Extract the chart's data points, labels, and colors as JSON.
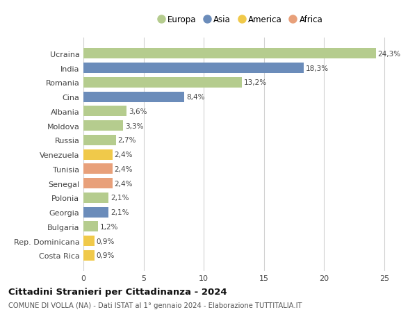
{
  "countries": [
    "Ucraina",
    "India",
    "Romania",
    "Cina",
    "Albania",
    "Moldova",
    "Russia",
    "Venezuela",
    "Tunisia",
    "Senegal",
    "Polonia",
    "Georgia",
    "Bulgaria",
    "Rep. Dominicana",
    "Costa Rica"
  ],
  "values": [
    24.3,
    18.3,
    13.2,
    8.4,
    3.6,
    3.3,
    2.7,
    2.4,
    2.4,
    2.4,
    2.1,
    2.1,
    1.2,
    0.9,
    0.9
  ],
  "labels": [
    "24,3%",
    "18,3%",
    "13,2%",
    "8,4%",
    "3,6%",
    "3,3%",
    "2,7%",
    "2,4%",
    "2,4%",
    "2,4%",
    "2,1%",
    "2,1%",
    "1,2%",
    "0,9%",
    "0,9%"
  ],
  "continents": [
    "Europa",
    "Asia",
    "Europa",
    "Asia",
    "Europa",
    "Europa",
    "Europa",
    "America",
    "Africa",
    "Africa",
    "Europa",
    "Asia",
    "Europa",
    "America",
    "America"
  ],
  "colors": {
    "Europa": "#b5cc8e",
    "Asia": "#6b8cba",
    "America": "#f0c94a",
    "Africa": "#e8a07a"
  },
  "legend_order": [
    "Europa",
    "Asia",
    "America",
    "Africa"
  ],
  "title": "Cittadini Stranieri per Cittadinanza - 2024",
  "subtitle": "COMUNE DI VOLLA (NA) - Dati ISTAT al 1° gennaio 2024 - Elaborazione TUTTITALIA.IT",
  "xlim": [
    0,
    26
  ],
  "xticks": [
    0,
    5,
    10,
    15,
    20,
    25
  ],
  "background_color": "#ffffff",
  "grid_color": "#d0d0d0",
  "bar_height": 0.72
}
